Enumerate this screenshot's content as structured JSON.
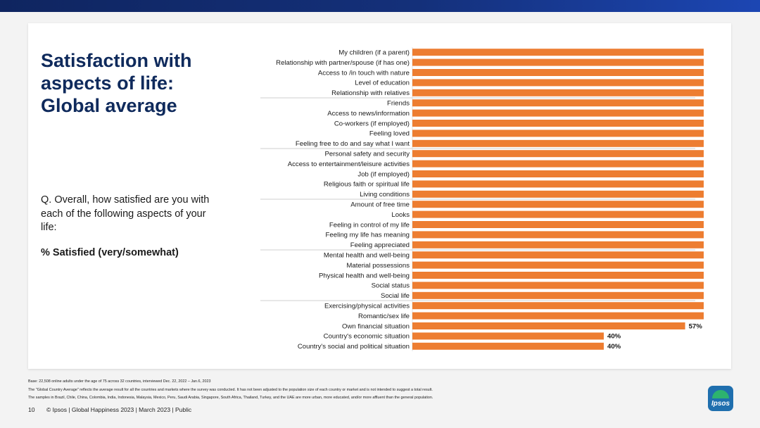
{
  "slide": {
    "title": "Satisfaction with\naspects of life:\nGlobal average",
    "question": "Q. Overall, how satisfied are you with each of the following aspects of your life:",
    "metric_label": "% Satisfied (very/somewhat)",
    "footnotes": [
      "Base: 22,508 online adults under the age of 75 across 32 countries, interviewed Dec. 22, 2022 – Jan.6, 2023",
      "The \"Global Country Average\" reflects the average result for all the countries and markets where the survey was conducted. It has not been adjusted to the population size of each country or market and is not intended to suggest a total result.",
      "The samples in Brazil, Chile, China, Colombia, India, Indonesia, Malaysia, Mexico, Peru, Saudi Arabia, Singapore, South Africa, Thailand, Turkey, and the UAE are more urban, more educated, and/or more affluent than the general population."
    ],
    "footer": {
      "page_number": "10",
      "text": "© Ipsos | Global Happiness 2023 | March 2023 | Public"
    },
    "logo_text": "Ipsos"
  },
  "colors": {
    "bar": "#ed7d31",
    "title": "#0f2a5c",
    "divider": "#bfbfbf"
  },
  "chart_data": {
    "type": "bar",
    "orientation": "horizontal",
    "categories": [
      "My children (if a parent)",
      "Relationship with partner/spouse (if has one)",
      "Access to /in touch with nature",
      "Level of education",
      "Relationship with relatives",
      "Friends",
      "Access to news/information",
      "Co-workers (if employed)",
      "Feeling loved",
      "Feeling free to do and say what I want",
      "Personal safety and security",
      "Access to entertainment/leisure activities",
      "Job (if employed)",
      "Religious faith or spiritual life",
      "Living conditions",
      "Amount of free time",
      "Looks",
      "Feeling in control of my life",
      "Feeling my life has meaning",
      "Feeling appreciated",
      "Mental health and well-being",
      "Material possessions",
      "Physical health and well-being",
      "Social status",
      "Social life",
      "Exercising/physical activities",
      "Romantic/sex life",
      "Own financial situation",
      "Country's economic situation",
      "Country's social and political situation"
    ],
    "values": [
      85,
      84,
      80,
      80,
      78,
      78,
      77,
      77,
      76,
      76,
      75,
      75,
      74,
      74,
      74,
      74,
      73,
      73,
      73,
      73,
      72,
      72,
      72,
      72,
      71,
      65,
      63,
      57,
      40,
      40
    ],
    "value_labels": [
      "85%",
      "84%",
      "80%",
      "80%",
      "78%",
      "78%",
      "77%",
      "77%",
      "76%",
      "76%",
      "75%",
      "75%",
      "74%",
      "74%",
      "74%",
      "74%",
      "73%",
      "73%",
      "73%",
      "73%",
      "72%",
      "72%",
      "72%",
      "72%",
      "71%",
      "65%",
      "63%",
      "57%",
      "40%",
      "40%"
    ],
    "group_dividers_after": [
      4,
      9,
      14,
      19,
      24
    ],
    "xlim": [
      0,
      100
    ],
    "title": "",
    "xlabel": "",
    "ylabel": ""
  }
}
